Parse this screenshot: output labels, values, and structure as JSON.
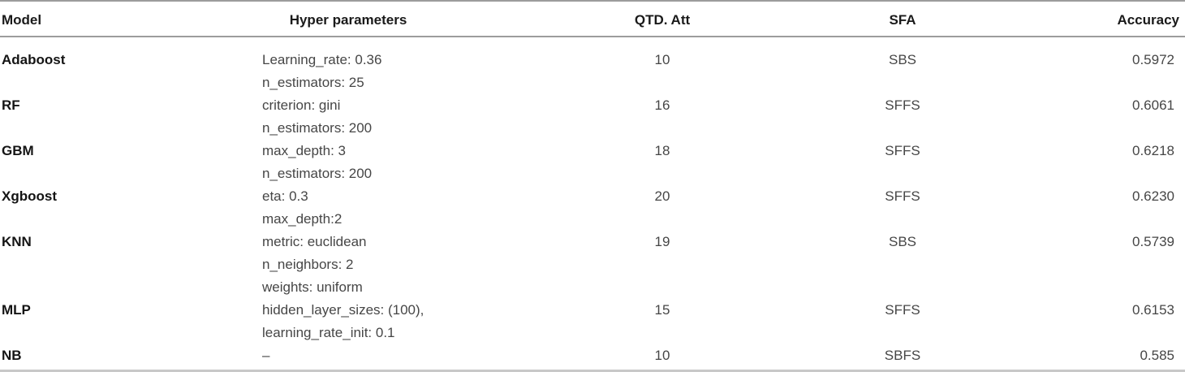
{
  "table": {
    "header": {
      "model": "Model",
      "hyper_parameters": "Hyper parameters",
      "qtd_att": "QTD. Att",
      "sfa": "SFA",
      "accuracy": "Accuracy"
    },
    "rows": [
      {
        "model": "Adaboost",
        "hyper_parameters": [
          "Learning_rate: 0.36",
          "n_estimators: 25"
        ],
        "qtd_att": "10",
        "sfa": "SBS",
        "accuracy": "0.5972"
      },
      {
        "model": "RF",
        "hyper_parameters": [
          "criterion: gini",
          "n_estimators: 200"
        ],
        "qtd_att": "16",
        "sfa": "SFFS",
        "accuracy": "0.6061"
      },
      {
        "model": "GBM",
        "hyper_parameters": [
          "max_depth: 3",
          "n_estimators: 200"
        ],
        "qtd_att": "18",
        "sfa": "SFFS",
        "accuracy": "0.6218"
      },
      {
        "model": "Xgboost",
        "hyper_parameters": [
          "eta: 0.3",
          "max_depth:2"
        ],
        "qtd_att": "20",
        "sfa": "SFFS",
        "accuracy": "0.6230"
      },
      {
        "model": "KNN",
        "hyper_parameters": [
          "metric: euclidean",
          "n_neighbors: 2",
          "weights: uniform"
        ],
        "qtd_att": "19",
        "sfa": "SBS",
        "accuracy": "0.5739"
      },
      {
        "model": "MLP",
        "hyper_parameters": [
          "hidden_layer_sizes: (100),",
          "learning_rate_init: 0.1"
        ],
        "qtd_att": "15",
        "sfa": "SFFS",
        "accuracy": "0.6153"
      },
      {
        "model": "NB",
        "hyper_parameters": [
          "–"
        ],
        "qtd_att": "10",
        "sfa": "SBFS",
        "accuracy": "0.585"
      }
    ]
  },
  "colors": {
    "background": "#ffffff",
    "header_text": "#1a1a1a",
    "model_text": "#141414",
    "body_text": "#464646",
    "rule_dark": "#9c9c9c",
    "rule_light": "#c8c8c8"
  }
}
